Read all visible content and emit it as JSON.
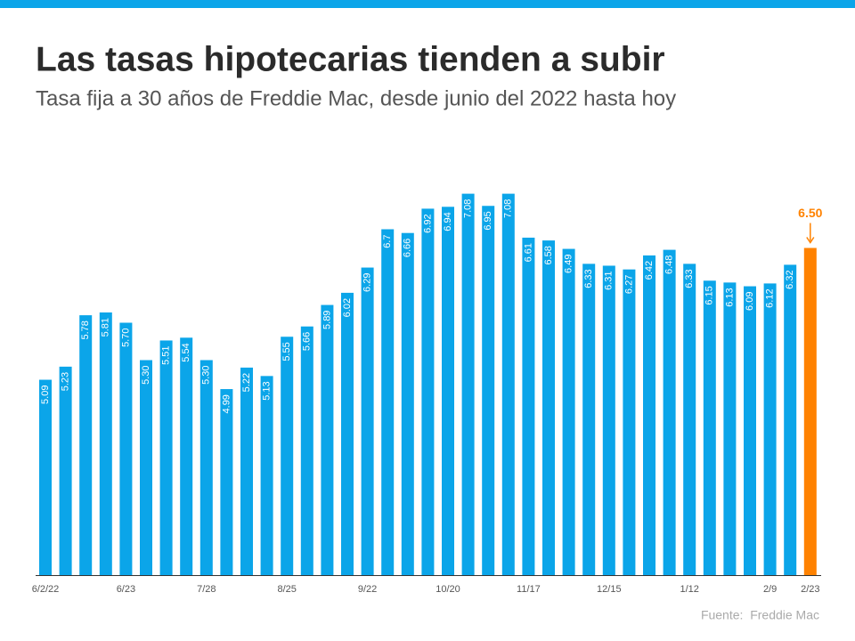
{
  "chart_data": {
    "type": "bar",
    "title": "Las tasas hipotecarias tienden a subir",
    "subtitle": "Tasa fija a 30 años de Freddie Mac, desde junio del 2022 hasta hoy",
    "source": "Fuente:  Freddie Mac",
    "categories": [
      "6/2/22",
      null,
      null,
      null,
      "6/23",
      null,
      null,
      null,
      "7/28",
      null,
      null,
      null,
      "8/25",
      null,
      null,
      null,
      "9/22",
      null,
      null,
      null,
      "10/20",
      null,
      null,
      null,
      "11/17",
      null,
      null,
      null,
      "12/15",
      null,
      null,
      null,
      "1/12",
      null,
      null,
      null,
      "2/9",
      null,
      "2/23"
    ],
    "values": [
      5.09,
      5.23,
      5.78,
      5.81,
      5.7,
      5.3,
      5.51,
      5.54,
      5.3,
      4.99,
      5.22,
      5.13,
      5.55,
      5.66,
      5.89,
      6.02,
      6.29,
      6.7,
      6.66,
      6.92,
      6.94,
      7.08,
      6.95,
      7.08,
      6.61,
      6.58,
      6.49,
      6.33,
      6.31,
      6.27,
      6.42,
      6.48,
      6.33,
      6.15,
      6.13,
      6.09,
      6.12,
      6.32,
      6.5
    ],
    "value_labels": [
      "5.09",
      "5.23",
      "5.78",
      "5.81",
      "5.70",
      "5.30",
      "5.51",
      "5.54",
      "5.30",
      "4.99",
      "5.22",
      "5.13",
      "5.55",
      "5.66",
      "5.89",
      "6.02",
      "6.29",
      "6.7",
      "6.66",
      "6.92",
      "6.94",
      "7.08",
      "6.95",
      "7.08",
      "6.61",
      "6.58",
      "6.49",
      "6.33",
      "6.31",
      "6.27",
      "6.42",
      "6.48",
      "6.33",
      "6.15",
      "6.13",
      "6.09",
      "6.12",
      "6.32",
      "6.50"
    ],
    "colors": [
      "#0ba5e9",
      "#0ba5e9",
      "#0ba5e9",
      "#0ba5e9",
      "#0ba5e9",
      "#0ba5e9",
      "#0ba5e9",
      "#0ba5e9",
      "#0ba5e9",
      "#0ba5e9",
      "#0ba5e9",
      "#0ba5e9",
      "#0ba5e9",
      "#0ba5e9",
      "#0ba5e9",
      "#0ba5e9",
      "#0ba5e9",
      "#0ba5e9",
      "#0ba5e9",
      "#0ba5e9",
      "#0ba5e9",
      "#0ba5e9",
      "#0ba5e9",
      "#0ba5e9",
      "#0ba5e9",
      "#0ba5e9",
      "#0ba5e9",
      "#0ba5e9",
      "#0ba5e9",
      "#0ba5e9",
      "#0ba5e9",
      "#0ba5e9",
      "#0ba5e9",
      "#0ba5e9",
      "#0ba5e9",
      "#0ba5e9",
      "#0ba5e9",
      "#0ba5e9",
      "#ff8200"
    ],
    "ylim": [
      3,
      7.5
    ]
  }
}
